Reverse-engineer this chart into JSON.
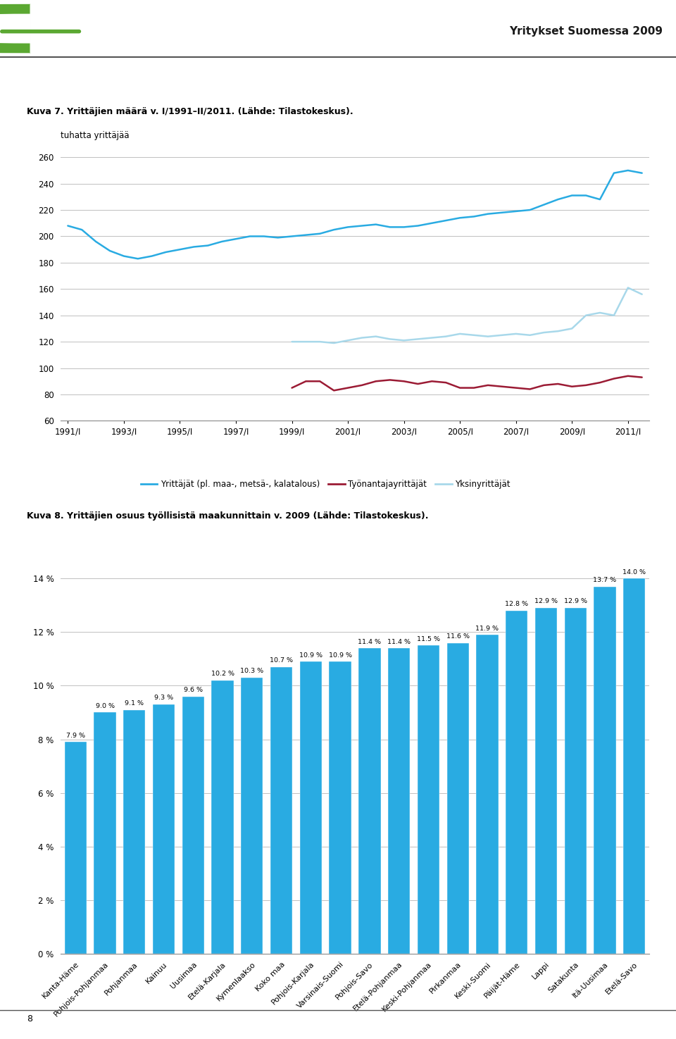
{
  "header_title": "Yritykset Suomessa 2009",
  "chart1_caption": "Kuva 7. Yrittäjien määrä v. I/1991–II/2011. (Lähde: Tilastokeskus).",
  "chart1_ylabel": "tuhatta yrittäjää",
  "chart1_ylim": [
    60,
    265
  ],
  "chart1_yticks": [
    60,
    80,
    100,
    120,
    140,
    160,
    180,
    200,
    220,
    240,
    260
  ],
  "chart1_xticks": [
    "1991/I",
    "1993/I",
    "1995/I",
    "1997/I",
    "1999/I",
    "2001/I",
    "2003/I",
    "2005/I",
    "2007/I",
    "2009/I",
    "2011/I"
  ],
  "line1_color": "#29ABE2",
  "line2_color": "#9B1B34",
  "line3_color": "#A8D8EA",
  "line1_label": "Yrittäjät (pl. maa-, metsä-, kalatalous)",
  "line2_label": "Työnantajayrittäjät",
  "line3_label": "Yksinyrittäjät",
  "line1_data_x": [
    0,
    1,
    2,
    3,
    4,
    5,
    6,
    7,
    8,
    9,
    10,
    11,
    12,
    13,
    14,
    15,
    16,
    17,
    18,
    19,
    20,
    21,
    22,
    23,
    24,
    25,
    26,
    27,
    28,
    29,
    30,
    31,
    32,
    33,
    34,
    35,
    36,
    37,
    38,
    39,
    40,
    41
  ],
  "line1_data_y": [
    208,
    205,
    196,
    189,
    185,
    183,
    185,
    188,
    190,
    192,
    193,
    196,
    198,
    200,
    200,
    199,
    200,
    201,
    202,
    205,
    207,
    208,
    209,
    207,
    207,
    208,
    210,
    212,
    214,
    215,
    217,
    218,
    219,
    220,
    224,
    228,
    231,
    231,
    228,
    248,
    250,
    248
  ],
  "line2_data_x": [
    16,
    17,
    18,
    19,
    20,
    21,
    22,
    23,
    24,
    25,
    26,
    27,
    28,
    29,
    30,
    31,
    32,
    33,
    34,
    35,
    36,
    37,
    38,
    39,
    40,
    41
  ],
  "line2_data_y": [
    85,
    90,
    90,
    83,
    85,
    87,
    90,
    91,
    90,
    88,
    90,
    89,
    85,
    85,
    87,
    86,
    85,
    84,
    87,
    88,
    86,
    87,
    89,
    92,
    94,
    93
  ],
  "line3_data_x": [
    16,
    17,
    18,
    19,
    20,
    21,
    22,
    23,
    24,
    25,
    26,
    27,
    28,
    29,
    30,
    31,
    32,
    33,
    34,
    35,
    36,
    37,
    38,
    39,
    40,
    41
  ],
  "line3_data_y": [
    120,
    120,
    120,
    119,
    121,
    123,
    124,
    122,
    121,
    122,
    123,
    124,
    126,
    125,
    124,
    125,
    126,
    125,
    127,
    128,
    130,
    140,
    142,
    140,
    161,
    156
  ],
  "chart2_caption": "Kuva 8. Yrittäjien osuus työllisistä maakunnittain v. 2009 (Lähde: Tilastokeskus).",
  "bar_categories": [
    "Kanta-Häme",
    "Pohjois-Pohjanmaa",
    "Pohjanmaa",
    "Kainuu",
    "Uusimaa",
    "Etelä-Karjala",
    "Kymenlaakso",
    "Koko maa",
    "Pohjois-Karjala",
    "Varsinais-Suomi",
    "Pohjois-Savo",
    "Etelä-Pohjanmaa",
    "Keski-Pohjanmaa",
    "Pirkanmaa",
    "Keski-Suomi",
    "Päijät-Häme",
    "Lappi",
    "Satakunta",
    "Itä-Uusimaa",
    "Etelä-Savo"
  ],
  "bar_values": [
    7.9,
    9.0,
    9.1,
    9.3,
    9.6,
    10.2,
    10.3,
    10.7,
    10.9,
    10.9,
    11.4,
    11.4,
    11.5,
    11.6,
    11.9,
    12.8,
    12.9,
    12.9,
    13.7,
    14.0
  ],
  "bar_color": "#29ABE2",
  "bar_yticks": [
    0,
    2,
    4,
    6,
    8,
    10,
    12,
    14
  ],
  "bar_ytick_labels": [
    "0 %",
    "2 %",
    "4 %",
    "6 %",
    "8 %",
    "10 %",
    "12 %",
    "14 %"
  ],
  "page_number": "8",
  "logo_green": "#5BA832",
  "logo_dark_green": "#2D6A1F",
  "grid_color": "#C0C0C0",
  "spine_color": "#888888"
}
